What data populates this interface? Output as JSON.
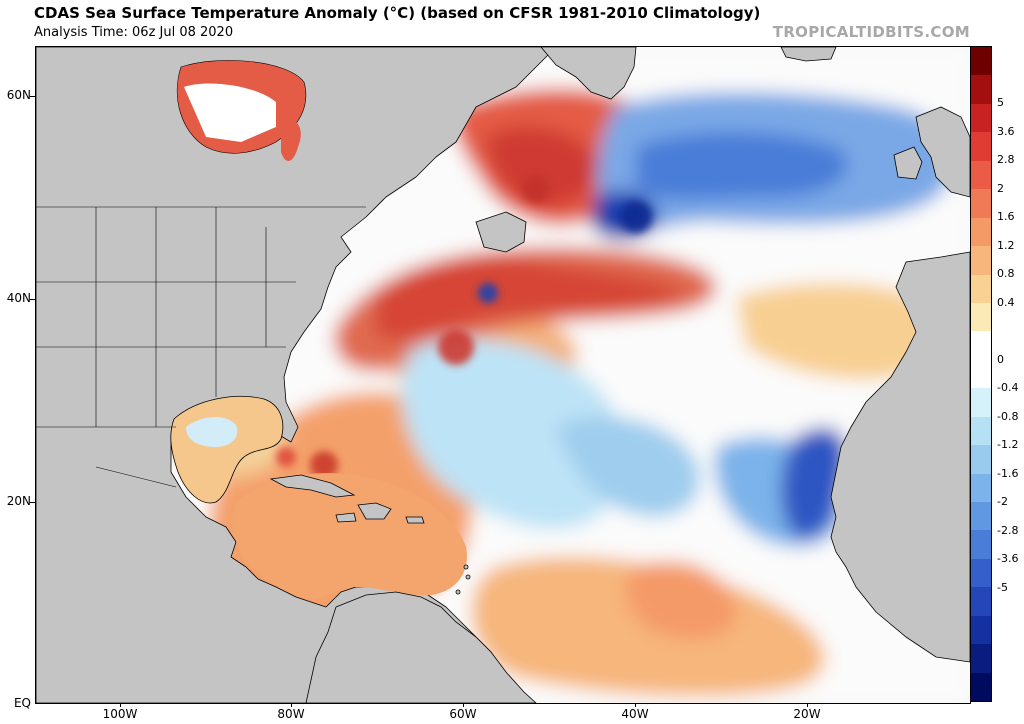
{
  "header": {
    "title": "CDAS Sea Surface Temperature Anomaly (°C) (based on CFSR 1981-2010 Climatology)",
    "analysis_time": "Analysis Time: 06z Jul 08 2020",
    "site": "TROPICALTIDBITS.COM"
  },
  "map": {
    "region": "North Atlantic",
    "lat_labels": [
      "60N",
      "40N",
      "20N",
      "EQ"
    ],
    "lon_labels": [
      "100W",
      "80W",
      "60W",
      "40W",
      "20W"
    ]
  },
  "colorbar": {
    "labels": [
      "5",
      "3.6",
      "2.8",
      "2",
      "1.6",
      "1.2",
      "0.8",
      "0.4",
      "0",
      "-0.4",
      "-0.8",
      "-1.2",
      "-1.6",
      "-2",
      "-2.8",
      "-3.6",
      "-5"
    ],
    "colors": [
      "#6e0000",
      "#a30f0f",
      "#c92222",
      "#e03c34",
      "#ea5c45",
      "#f07a55",
      "#f49a67",
      "#f6b67c",
      "#f9d293",
      "#fbe9b6",
      "#ffffff",
      "#ffffff",
      "#d5f1fa",
      "#b6e1f4",
      "#99cbef",
      "#7cb3ea",
      "#6198e2",
      "#4a7dd8",
      "#355fca",
      "#2546b8",
      "#1530a0",
      "#0a1c80",
      "#000a5e"
    ],
    "land_color": "#c4c4c4"
  }
}
